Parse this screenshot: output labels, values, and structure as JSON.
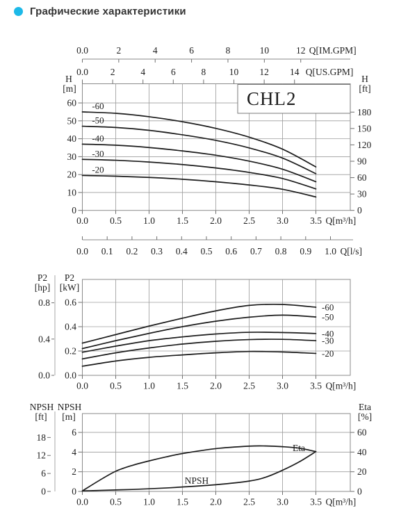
{
  "page": {
    "title": "Графические характеристики",
    "accent_color": "#1db9e8",
    "text_color": "#333333",
    "grid_color": "#9d9d9d",
    "curve_color": "#1b1b1b"
  },
  "chart_data": [
    {
      "id": "head-capacity",
      "type": "line",
      "title": "CHL2",
      "x_axis": {
        "label": "Q[m³/h]",
        "ticks": [
          "0.0",
          "0.5",
          "1.0",
          "1.5",
          "2.0",
          "2.5",
          "3.0",
          "3.5"
        ],
        "values": [
          0,
          0.5,
          1,
          1.5,
          2,
          2.5,
          3,
          3.5
        ]
      },
      "x_top_axes": [
        {
          "label": "Q[IM.GPM]",
          "ticks": [
            "0.0",
            "2",
            "4",
            "6",
            "8",
            "10",
            "12"
          ],
          "values": [
            0,
            2,
            4,
            6,
            8,
            10,
            12
          ],
          "m3h_per_unit": 0.27276
        },
        {
          "label": "Q[US.GPM]",
          "ticks": [
            "0.0",
            "2",
            "4",
            "6",
            "8",
            "10",
            "12",
            "14"
          ],
          "values": [
            0,
            2,
            4,
            6,
            8,
            10,
            12,
            14
          ],
          "m3h_per_unit": 0.22712
        }
      ],
      "x_bottom_axis": {
        "label": "Q[l/s]",
        "ticks": [
          "0.0",
          "0.1",
          "0.2",
          "0.3",
          "0.4",
          "0.5",
          "0.6",
          "0.7",
          "0.8",
          "0.9",
          "1.0"
        ],
        "values": [
          0,
          0.1,
          0.2,
          0.3,
          0.4,
          0.5,
          0.6,
          0.7,
          0.8,
          0.9,
          1.0
        ]
      },
      "y_left": {
        "name": "H",
        "unit": "[m]",
        "ticks": [
          "60",
          "50",
          "40",
          "30",
          "20",
          "10",
          "0"
        ],
        "values": [
          60,
          50,
          40,
          30,
          20,
          10,
          0
        ],
        "grid_values": [
          60,
          50,
          40,
          30,
          20,
          10
        ]
      },
      "y_right": {
        "name": "H",
        "unit": "[ft]",
        "ticks": [
          "180",
          "150",
          "120",
          "90",
          "60",
          "30",
          "0"
        ],
        "values": [
          180,
          150,
          120,
          90,
          60,
          30,
          0
        ]
      },
      "series_x": [
        0,
        0.5,
        1,
        1.5,
        2,
        2.5,
        3,
        3.5
      ],
      "series": [
        {
          "name": "-60",
          "y": [
            55,
            54.2,
            52.3,
            49.5,
            45.8,
            40.9,
            34.2,
            24.3
          ]
        },
        {
          "name": "-50",
          "y": [
            47,
            46.3,
            44.7,
            42.2,
            39.1,
            34.9,
            29.2,
            20.5
          ]
        },
        {
          "name": "-40",
          "y": [
            37,
            36.4,
            35.1,
            33.2,
            30.8,
            27.5,
            23,
            16
          ]
        },
        {
          "name": "-30",
          "y": [
            28.5,
            28,
            27,
            25.6,
            23.7,
            21.2,
            17.8,
            12
          ]
        },
        {
          "name": "-20",
          "y": [
            19.5,
            19.1,
            18.4,
            17.4,
            16,
            14.2,
            11.8,
            7.5
          ]
        }
      ]
    },
    {
      "id": "power",
      "type": "line",
      "x_axis": {
        "label": "Q[m³/h]",
        "ticks": [
          "0.0",
          "0.5",
          "1.0",
          "1.5",
          "2.0",
          "2.5",
          "3.0",
          "3.5"
        ],
        "values": [
          0,
          0.5,
          1,
          1.5,
          2,
          2.5,
          3,
          3.5
        ]
      },
      "y_left": {
        "name": "P2",
        "unit": "[kW]",
        "ticks": [
          "0.6",
          "0.4",
          "0.2",
          "0.0"
        ],
        "values": [
          0.6,
          0.4,
          0.2,
          0.0
        ],
        "grid_values": [
          0.6,
          0.4,
          0.2
        ]
      },
      "y_left_outer": {
        "name": "P2",
        "unit": "[hp]",
        "ticks": [
          "0.8",
          "0.4",
          "0.0"
        ],
        "values": [
          0.8,
          0.4,
          0.0
        ]
      },
      "series_x": [
        0,
        0.5,
        1,
        1.5,
        2,
        2.5,
        3,
        3.5
      ],
      "series": [
        {
          "name": "-60",
          "y": [
            0.265,
            0.335,
            0.405,
            0.47,
            0.53,
            0.575,
            0.583,
            0.56
          ]
        },
        {
          "name": "-50",
          "y": [
            0.22,
            0.285,
            0.345,
            0.4,
            0.445,
            0.478,
            0.495,
            0.48
          ]
        },
        {
          "name": "-40",
          "y": [
            0.19,
            0.24,
            0.285,
            0.316,
            0.34,
            0.354,
            0.352,
            0.344
          ]
        },
        {
          "name": "-30",
          "y": [
            0.135,
            0.185,
            0.225,
            0.257,
            0.28,
            0.294,
            0.296,
            0.285
          ]
        },
        {
          "name": "-20",
          "y": [
            0.075,
            0.118,
            0.148,
            0.168,
            0.185,
            0.196,
            0.192,
            0.18
          ]
        }
      ]
    },
    {
      "id": "npsh-eta",
      "type": "line",
      "x_axis": {
        "label": "Q[m³/h]",
        "ticks": [
          "0.0",
          "0.5",
          "1.0",
          "1.5",
          "2.0",
          "2.5",
          "3.0",
          "3.5"
        ],
        "values": [
          0,
          0.5,
          1,
          1.5,
          2,
          2.5,
          3,
          3.5
        ]
      },
      "y_left": {
        "name": "NPSH",
        "unit": "[m]",
        "ticks": [
          "6",
          "4",
          "2",
          "0"
        ],
        "values": [
          6,
          4,
          2,
          0
        ],
        "grid_values": [
          6,
          4,
          2
        ]
      },
      "y_left_outer": {
        "name": "NPSH",
        "unit": "[ft]",
        "ticks": [
          "18",
          "12",
          "6",
          "0"
        ],
        "values": [
          18,
          12,
          6,
          0
        ]
      },
      "y_right": {
        "name": "Eta",
        "unit": "[%]",
        "ticks": [
          "60",
          "40",
          "20",
          "0"
        ],
        "values": [
          60,
          40,
          20,
          0
        ]
      },
      "series": [
        {
          "name": "Eta",
          "unit": "%",
          "axis": "right",
          "x": [
            0,
            0.25,
            0.5,
            0.75,
            1,
            1.25,
            1.5,
            2,
            2.5,
            2.75,
            3,
            3.25,
            3.5
          ],
          "y": [
            0.5,
            11,
            20.5,
            26.5,
            31,
            35,
            38.5,
            43.5,
            46,
            46.2,
            45.5,
            44,
            40.5
          ]
        },
        {
          "name": "NPSH",
          "unit": "m",
          "axis": "left",
          "x": [
            0,
            0.25,
            0.5,
            0.75,
            1,
            1.25,
            1.5,
            2,
            2.5,
            2.75,
            3,
            3.25,
            3.5
          ],
          "y": [
            0.05,
            0.1,
            0.15,
            0.2,
            0.27,
            0.35,
            0.45,
            0.68,
            1.05,
            1.45,
            2.15,
            3.0,
            4.05
          ]
        }
      ]
    }
  ]
}
